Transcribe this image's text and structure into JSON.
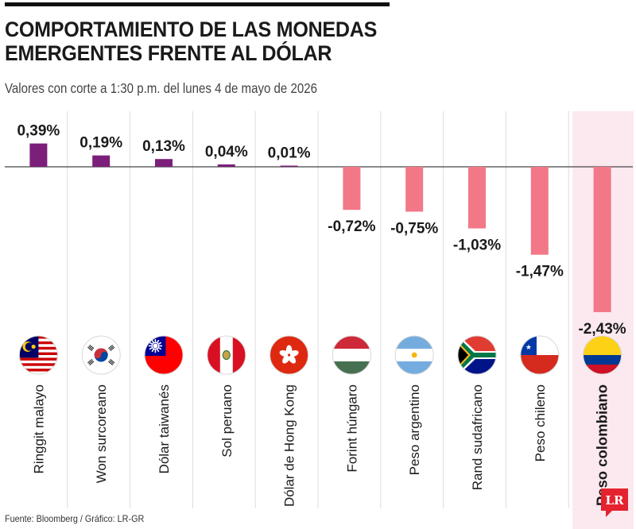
{
  "title": [
    "COMPORTAMIENTO DE LAS MONEDAS",
    "EMERGENTES FRENTE AL DÓLAR"
  ],
  "subtitle": "Valores con corte a 1:30 p.m. del lunes 4 de mayo de 2026",
  "source": "Fuente: Bloomberg / Gráfico: LR-GR",
  "logo_text": "LR",
  "colors": {
    "positive": "#7b1f7a",
    "negative": "#f27887",
    "highlight_background": "#fce8ef",
    "logo": "#e4232f",
    "grid": "#dddddd",
    "baseline": "#444444"
  },
  "chart_data": {
    "type": "bar",
    "categories": [
      "Ringgit malayo",
      "Won surcoreano",
      "Dólar taiwanés",
      "Sol peruano",
      "Dólar de Hong Kong",
      "Forint húngaro",
      "Peso argentino",
      "Rand sudafricano",
      "Peso chileno",
      "Peso colombiano"
    ],
    "values": [
      0.39,
      0.19,
      0.13,
      0.04,
      0.01,
      -0.72,
      -0.75,
      -1.03,
      -1.47,
      -2.43
    ],
    "labels": [
      "0,39%",
      "0,19%",
      "0,13%",
      "0,04%",
      "0,01%",
      "-0,72%",
      "-0,75%",
      "-1,03%",
      "-1,47%",
      "-2,43%"
    ],
    "flags": [
      "malaysia-flag",
      "south-korea-flag",
      "taiwan-flag",
      "peru-flag",
      "hong-kong-flag",
      "hungary-flag",
      "argentina-flag",
      "south-africa-flag",
      "chile-flag",
      "colombia-flag"
    ],
    "highlight": "Peso colombiano",
    "unit": "%",
    "grid": false,
    "legend": "none"
  }
}
